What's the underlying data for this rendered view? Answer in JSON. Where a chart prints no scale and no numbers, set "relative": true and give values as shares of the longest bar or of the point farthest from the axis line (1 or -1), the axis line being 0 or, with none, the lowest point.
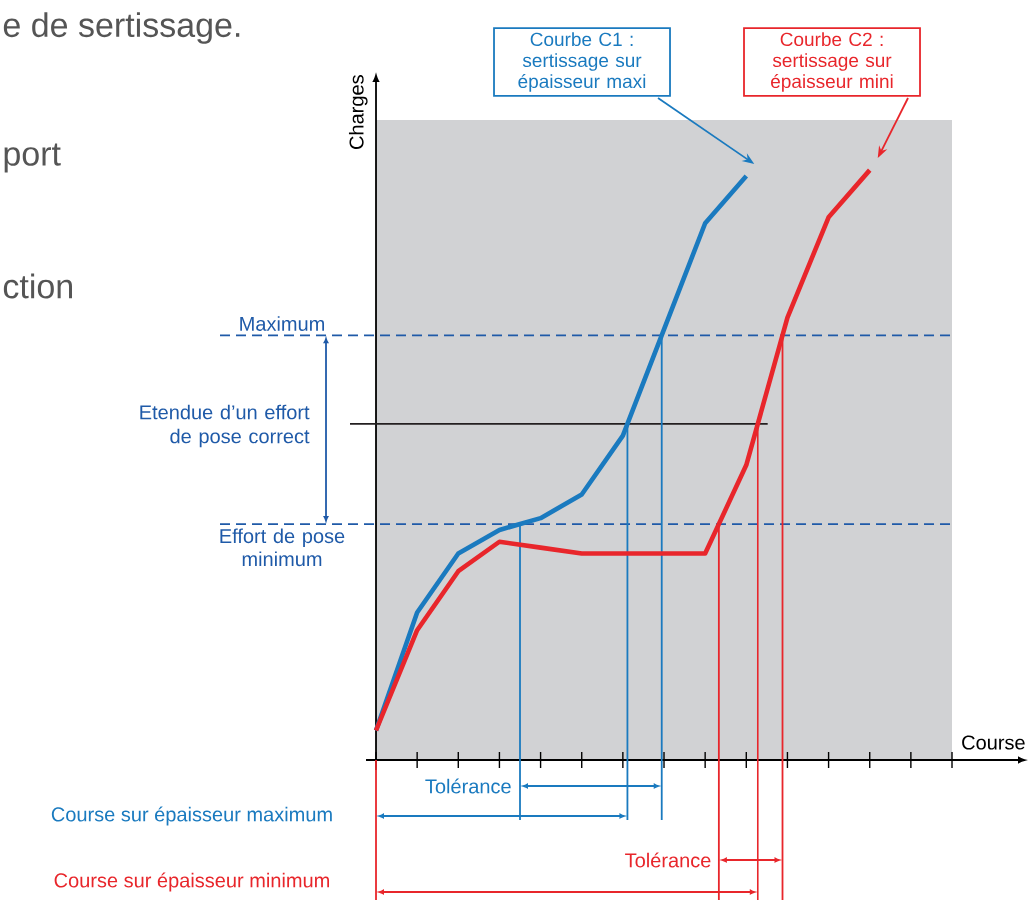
{
  "chart_data": {
    "type": "line",
    "relative": true,
    "xlabel": "Course",
    "ylabel": "Charges",
    "categories": [
      null,
      null,
      null,
      null,
      null,
      null,
      null,
      null,
      null,
      null,
      null,
      null,
      null,
      null,
      null
    ],
    "series": [
      {
        "name": "Courbe C1 : sertissage sur épaisseur maxi",
        "color": "#1a7abf",
        "values": [
          0.05,
          0.25,
          0.35,
          0.39,
          0.41,
          0.45,
          0.55,
          0.73,
          0.91,
          0.99,
          null,
          null,
          null,
          null,
          null
        ]
      },
      {
        "name": "Courbe C2 : sertissage sur épaisseur mini",
        "color": "#e8262b",
        "values": [
          0.05,
          0.22,
          0.32,
          0.37,
          0.36,
          0.35,
          0.35,
          0.35,
          0.35,
          0.5,
          0.75,
          0.92,
          1.0,
          null,
          null
        ]
      }
    ],
    "ref_lines": [
      {
        "axis": "y",
        "value": 0.72,
        "label": "Maximum",
        "color": "#1f5aa8",
        "line_style": "dashed"
      },
      {
        "axis": "y",
        "value": 0.57,
        "color": "#231f20",
        "line_style": "solid"
      },
      {
        "axis": "y",
        "value": 0.4,
        "label": "Effort de pose minimum",
        "color": "#1f5aa8",
        "line_style": "dashed"
      }
    ],
    "annotations": [
      "e de sertissage.",
      "port",
      "ction",
      "Etendue d’un effort de pose correct",
      "Tolérance",
      "Tolérance",
      "Course sur épaisseur maximum",
      "Course sur épaisseur minimum"
    ]
  }
}
